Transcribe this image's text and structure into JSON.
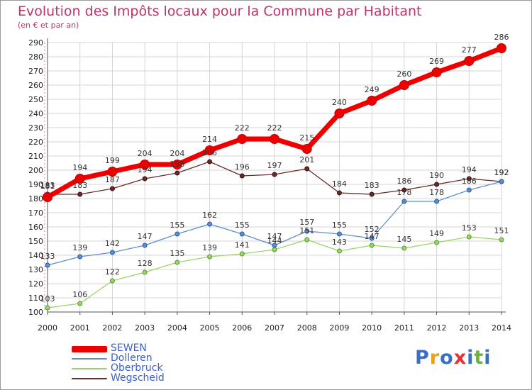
{
  "title": "Evolution des Impôts locaux pour la Commune par Habitant",
  "subtitle": "(en € et par an)",
  "brand": {
    "text": "Proxiti",
    "letter_colors": [
      "#3a6fc4",
      "#e8a020",
      "#3a6fc4",
      "#e83030",
      "#3a6fc4",
      "#6ab53a",
      "#3a6fc4"
    ]
  },
  "chart_data": {
    "type": "line",
    "x": [
      2000,
      2001,
      2002,
      2003,
      2004,
      2005,
      2006,
      2007,
      2008,
      2009,
      2010,
      2011,
      2012,
      2013,
      2014
    ],
    "ylim": [
      100,
      290
    ],
    "yticks": [
      100,
      110,
      120,
      130,
      140,
      150,
      160,
      170,
      180,
      190,
      200,
      210,
      220,
      230,
      240,
      250,
      260,
      270,
      280,
      290
    ],
    "grid": true,
    "legend_position": "bottom-left",
    "series": [
      {
        "name": "SEWEN",
        "color": "#ee0000",
        "values": [
          181,
          194,
          199,
          204,
          204,
          214,
          222,
          222,
          215,
          240,
          249,
          260,
          269,
          277,
          286
        ],
        "labels": [
          "181",
          "194",
          "199",
          "204",
          "204",
          "214",
          "222",
          "222",
          "215",
          "240",
          "249",
          "260",
          "269",
          "277",
          "286"
        ]
      },
      {
        "name": "Dolleren",
        "color": "#5b8fd0",
        "values": [
          133,
          139,
          142,
          147,
          155,
          162,
          155,
          147,
          157,
          155,
          152,
          178,
          178,
          186,
          192
        ],
        "labels": [
          "133",
          "139",
          "142",
          "147",
          "155",
          "162",
          "155",
          "147",
          "157",
          "155",
          "152",
          "178",
          "178",
          "186",
          "192"
        ]
      },
      {
        "name": "Oberbruck",
        "color": "#9ad468",
        "values": [
          103,
          106,
          122,
          128,
          135,
          139,
          141,
          144,
          151,
          143,
          147,
          145,
          149,
          153,
          151
        ],
        "labels": [
          "103",
          "106",
          "122",
          "128",
          "135",
          "139",
          "141",
          "144",
          "151",
          "143",
          "147",
          "145",
          "149",
          "153",
          "151"
        ]
      },
      {
        "name": "Wegscheid",
        "color": "#6b2a2a",
        "values": [
          183,
          183,
          187,
          194,
          198,
          206,
          196,
          197,
          201,
          184,
          183,
          186,
          190,
          194,
          192
        ],
        "labels": [
          "183",
          "183",
          "187",
          "194",
          "198",
          "206",
          "196",
          "197",
          "201",
          "184",
          "183",
          "186",
          "190",
          "194",
          "192"
        ]
      }
    ]
  }
}
